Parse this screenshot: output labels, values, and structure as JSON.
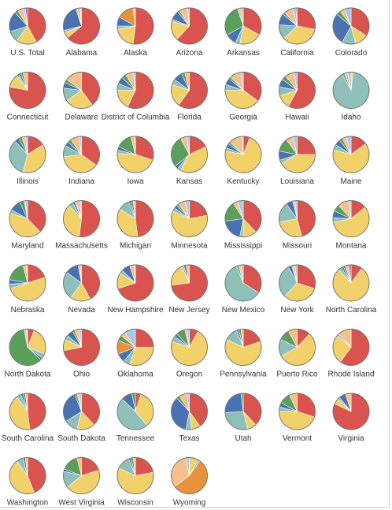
{
  "chart_data": {
    "type": "pie",
    "title": "",
    "colors": [
      "#d9544f",
      "#f2d16b",
      "#8fbfb9",
      "#4a72b2",
      "#e8923e",
      "#5aa05a",
      "#f5c08c",
      "#a8c8e8",
      "#a06ab4"
    ],
    "pies": [
      {
        "name": "U.S. Total",
        "values": [
          42,
          18,
          10,
          18,
          0,
          3,
          5,
          2,
          2
        ]
      },
      {
        "name": "Alabama",
        "values": [
          64,
          5,
          2,
          24,
          0,
          1,
          3,
          1,
          0
        ]
      },
      {
        "name": "Alaska",
        "values": [
          52,
          20,
          3,
          8,
          15,
          0,
          2,
          0,
          0
        ]
      },
      {
        "name": "Arizona",
        "values": [
          62,
          17,
          2,
          8,
          0,
          2,
          7,
          1,
          1
        ]
      },
      {
        "name": "Arkansas",
        "values": [
          33,
          20,
          4,
          10,
          0,
          28,
          3,
          2,
          0
        ]
      },
      {
        "name": "California",
        "values": [
          28,
          35,
          13,
          10,
          0,
          2,
          8,
          3,
          1
        ]
      },
      {
        "name": "Colorado",
        "values": [
          34,
          12,
          12,
          28,
          0,
          4,
          4,
          6,
          0
        ]
      },
      {
        "name": "Connecticut",
        "values": [
          78,
          12,
          2,
          2,
          0,
          2,
          4,
          0,
          0
        ]
      },
      {
        "name": "Delaware",
        "values": [
          40,
          25,
          12,
          5,
          0,
          3,
          15,
          0,
          0
        ]
      },
      {
        "name": "District of Columbia",
        "values": [
          57,
          18,
          6,
          6,
          0,
          4,
          7,
          2,
          0
        ]
      },
      {
        "name": "Florida",
        "values": [
          60,
          20,
          5,
          8,
          0,
          3,
          4,
          0,
          0
        ]
      },
      {
        "name": "Georgia",
        "values": [
          35,
          40,
          5,
          6,
          0,
          2,
          10,
          2,
          0
        ]
      },
      {
        "name": "Hawaii",
        "values": [
          58,
          12,
          8,
          7,
          0,
          4,
          8,
          3,
          0
        ]
      },
      {
        "name": "Idaho",
        "values": [
          0,
          2,
          90,
          0,
          0,
          2,
          3,
          3,
          0
        ]
      },
      {
        "name": "Illinois",
        "values": [
          16,
          38,
          34,
          4,
          0,
          3,
          3,
          2,
          0
        ]
      },
      {
        "name": "Indiana",
        "values": [
          35,
          38,
          10,
          4,
          0,
          3,
          8,
          2,
          0
        ]
      },
      {
        "name": "Iowa",
        "values": [
          30,
          46,
          3,
          3,
          0,
          14,
          3,
          1,
          0
        ]
      },
      {
        "name": "Kansas",
        "values": [
          18,
          40,
          3,
          3,
          0,
          28,
          6,
          2,
          0
        ]
      },
      {
        "name": "Kentucky",
        "values": [
          6,
          72,
          3,
          4,
          0,
          2,
          12,
          1,
          0
        ]
      },
      {
        "name": "Louisiana",
        "values": [
          25,
          42,
          3,
          8,
          0,
          12,
          6,
          4,
          0
        ]
      },
      {
        "name": "Maine",
        "values": [
          15,
          64,
          5,
          5,
          0,
          3,
          4,
          4,
          0
        ]
      },
      {
        "name": "Maryland",
        "values": [
          38,
          42,
          3,
          10,
          0,
          4,
          1,
          2,
          0
        ]
      },
      {
        "name": "Massachusetts",
        "values": [
          52,
          36,
          4,
          2,
          0,
          1,
          4,
          1,
          0
        ]
      },
      {
        "name": "Michigan",
        "values": [
          48,
          36,
          10,
          2,
          0,
          2,
          2,
          0,
          0
        ]
      },
      {
        "name": "Minnesota",
        "values": [
          22,
          60,
          3,
          3,
          0,
          2,
          6,
          4,
          0
        ]
      },
      {
        "name": "Mississippi",
        "values": [
          38,
          12,
          3,
          20,
          0,
          18,
          4,
          5,
          0
        ]
      },
      {
        "name": "Missouri",
        "values": [
          46,
          26,
          18,
          6,
          0,
          0,
          2,
          2,
          0
        ]
      },
      {
        "name": "Montana",
        "values": [
          14,
          58,
          4,
          6,
          0,
          6,
          10,
          2,
          0
        ]
      },
      {
        "name": "Nebraska",
        "values": [
          20,
          50,
          4,
          4,
          0,
          18,
          3,
          1,
          0
        ]
      },
      {
        "name": "Nevada",
        "values": [
          42,
          18,
          25,
          12,
          0,
          0,
          2,
          1,
          0
        ]
      },
      {
        "name": "New Hampshire",
        "values": [
          70,
          14,
          3,
          8,
          0,
          0,
          4,
          1,
          0
        ]
      },
      {
        "name": "New Jersey",
        "values": [
          73,
          20,
          2,
          2,
          0,
          0,
          3,
          0,
          0
        ]
      },
      {
        "name": "New Mexico",
        "values": [
          34,
          0,
          60,
          0,
          0,
          2,
          2,
          2,
          0
        ]
      },
      {
        "name": "New York",
        "values": [
          30,
          32,
          30,
          3,
          0,
          1,
          2,
          2,
          0
        ]
      },
      {
        "name": "North Carolina",
        "values": [
          10,
          78,
          3,
          2,
          0,
          2,
          3,
          0,
          2
        ]
      },
      {
        "name": "North Dakota",
        "values": [
          6,
          25,
          4,
          2,
          0,
          60,
          2,
          1,
          0
        ]
      },
      {
        "name": "Ohio",
        "values": [
          72,
          10,
          4,
          6,
          0,
          2,
          4,
          2,
          0
        ]
      },
      {
        "name": "Oklahoma",
        "values": [
          25,
          30,
          6,
          8,
          12,
          5,
          4,
          10,
          0
        ]
      },
      {
        "name": "Oregon",
        "values": [
          8,
          72,
          5,
          3,
          0,
          8,
          2,
          2,
          0
        ]
      },
      {
        "name": "Pennsylvania",
        "values": [
          20,
          62,
          12,
          2,
          0,
          2,
          2,
          0,
          0
        ]
      },
      {
        "name": "Puerto Rico",
        "values": [
          12,
          55,
          15,
          0,
          0,
          10,
          8,
          0,
          0
        ]
      },
      {
        "name": "Rhode Island",
        "values": [
          60,
          26,
          2,
          0,
          0,
          0,
          12,
          0,
          0
        ]
      },
      {
        "name": "South Carolina",
        "values": [
          48,
          42,
          4,
          2,
          0,
          2,
          2,
          0,
          0
        ]
      },
      {
        "name": "South Dakota",
        "values": [
          38,
          16,
          12,
          28,
          0,
          2,
          2,
          2,
          0
        ]
      },
      {
        "name": "Tennessee",
        "values": [
          5,
          34,
          48,
          10,
          0,
          3,
          0,
          0,
          0
        ]
      },
      {
        "name": "Texas",
        "values": [
          40,
          8,
          5,
          35,
          0,
          3,
          7,
          2,
          0
        ]
      },
      {
        "name": "Utah",
        "values": [
          38,
          8,
          28,
          24,
          0,
          2,
          0,
          0,
          0
        ]
      },
      {
        "name": "Vermont",
        "values": [
          30,
          45,
          4,
          4,
          0,
          10,
          7,
          0,
          0
        ]
      },
      {
        "name": "Virginia",
        "values": [
          82,
          5,
          2,
          6,
          0,
          0,
          5,
          0,
          0
        ]
      },
      {
        "name": "Washington",
        "values": [
          44,
          46,
          6,
          2,
          0,
          0,
          2,
          0,
          0
        ]
      },
      {
        "name": "West Virginia",
        "values": [
          20,
          44,
          15,
          2,
          0,
          15,
          4,
          0,
          0
        ]
      },
      {
        "name": "Wisconsin",
        "values": [
          22,
          60,
          12,
          2,
          0,
          2,
          2,
          0,
          0
        ]
      },
      {
        "name": "Wyoming",
        "values": [
          0,
          8,
          2,
          0,
          55,
          0,
          32,
          3,
          0
        ]
      }
    ]
  }
}
